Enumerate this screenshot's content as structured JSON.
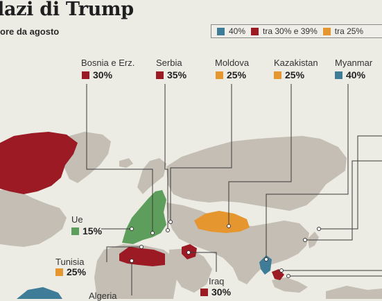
{
  "header": {
    "title": "lazi di Trump",
    "subtitle": "ore da agosto"
  },
  "legend": [
    {
      "label": "40%",
      "color": "#3f7c97"
    },
    {
      "label": "tra 30% e 39%",
      "color": "#9b1a24"
    },
    {
      "label": "tra 25%",
      "color": "#e5962f"
    }
  ],
  "colors": {
    "tier_40": "#3f7c97",
    "tier_30_39": "#9b1a24",
    "tier_25": "#e5962f",
    "eu": "#5e9e5c",
    "land": "#c4beb4",
    "water": "#ecebe4"
  },
  "callouts": [
    {
      "name": "Bosnia e Erz.",
      "rate": "30%",
      "tier": "tier_30_39"
    },
    {
      "name": "Serbia",
      "rate": "35%",
      "tier": "tier_30_39"
    },
    {
      "name": "Moldova",
      "rate": "25%",
      "tier": "tier_25"
    },
    {
      "name": "Kazakistan",
      "rate": "25%",
      "tier": "tier_25"
    },
    {
      "name": "Myanmar",
      "rate": "40%",
      "tier": "tier_40"
    },
    {
      "name": "Ue",
      "rate": "15%",
      "tier": "eu"
    },
    {
      "name": "Tunisia",
      "rate": "25%",
      "tier": "tier_25"
    },
    {
      "name": "Iraq",
      "rate": "30%",
      "tier": "tier_30_39"
    },
    {
      "name": "Algeria",
      "rate": "",
      "tier": "tier_30_39"
    }
  ]
}
